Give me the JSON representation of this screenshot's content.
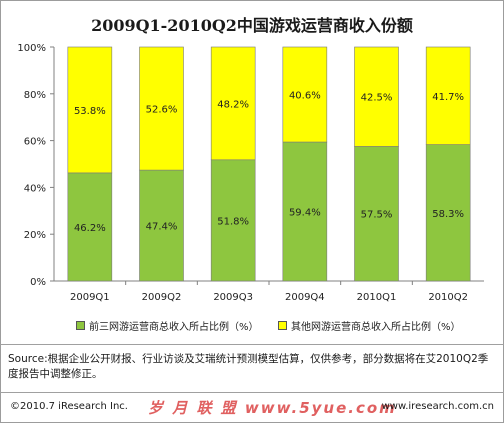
{
  "title": "2009Q1-2010Q2中国游戏运营商收入份额",
  "chart_data": {
    "type": "bar",
    "stacked": true,
    "title": "2009Q1-2010Q2中国游戏运营商收入份额",
    "categories": [
      "2009Q1",
      "2009Q2",
      "2009Q3",
      "2009Q4",
      "2010Q1",
      "2010Q2"
    ],
    "series": [
      {
        "name": "前三网游运营商总收入所占比例（%）",
        "values": [
          46.2,
          47.4,
          51.8,
          59.4,
          57.5,
          58.3
        ],
        "labels": [
          "46.2%",
          "47.4%",
          "51.8%",
          "59.4%",
          "57.5%",
          "58.3%"
        ],
        "color": "#8ec63f"
      },
      {
        "name": "其他网游运营商总收入所占比例（%）",
        "values": [
          53.8,
          52.6,
          48.2,
          40.6,
          42.5,
          41.7
        ],
        "labels": [
          "53.8%",
          "52.6%",
          "48.2%",
          "40.6%",
          "42.5%",
          "41.7%"
        ],
        "color": "#ffff00"
      }
    ],
    "ylim": [
      0,
      100
    ],
    "y_ticks": [
      0,
      20,
      40,
      60,
      80,
      100
    ],
    "y_tick_labels": [
      "0%",
      "20%",
      "40%",
      "60%",
      "80%",
      "100%"
    ],
    "grid": false,
    "legend_position": "bottom"
  },
  "source_note": "Source:根据企业公开财报、行业访谈及艾瑞统计预测模型估算，仅供参考，部分数据将在艾2010Q2季度报告中调整修正。",
  "footer": {
    "copyright": "©2010.7 iResearch Inc.",
    "watermark": "岁 月 联 盟  www.5yue.com",
    "website": "www.iresearch.com.cn"
  }
}
